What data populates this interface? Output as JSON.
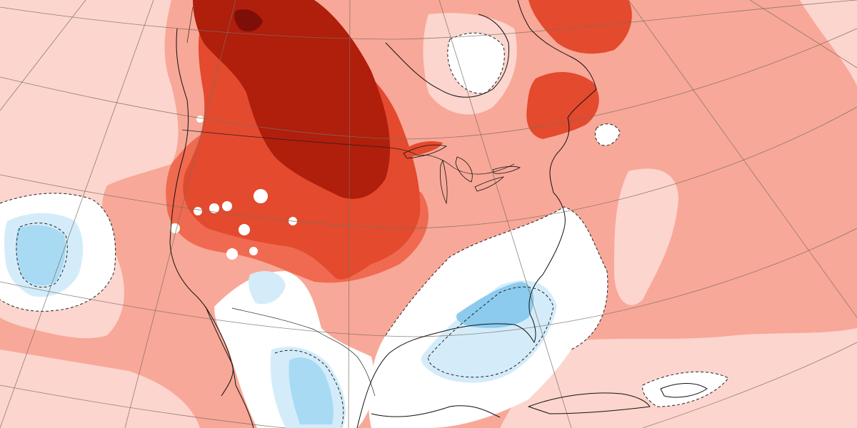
{
  "map": {
    "type": "anomaly-map",
    "region": "North America",
    "grid_lines": true,
    "legend": "none",
    "colors": {
      "ocean_light_warm": "#fcd5ce",
      "warm_1": "#f8a898",
      "warm_2": "#ef6a50",
      "warm_3": "#e34a2e",
      "warm_4": "#b01e0c",
      "warm_5": "#7e0f08",
      "neutral": "#ffffff",
      "cool_1": "#d4ecfa",
      "cool_2": "#a9daf4",
      "cool_3": "#8ccbee",
      "outline": "#111111",
      "grid": "#7a7060"
    },
    "anomaly_zones": [
      "warm-ocean-background",
      "warm-land",
      "strong-warm-west",
      "extreme-warm-canada",
      "warm-quebec",
      "neutral-southeast",
      "cool-florida-gulf",
      "cool-mexico",
      "cool-pacific"
    ]
  }
}
